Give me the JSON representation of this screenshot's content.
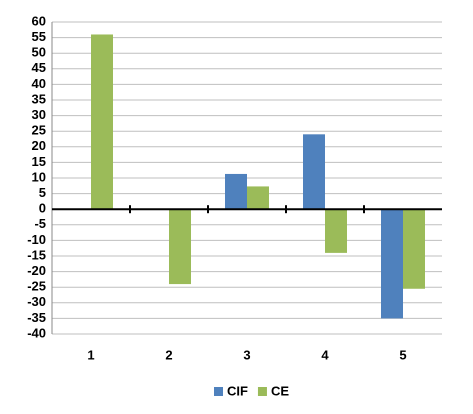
{
  "chart_data": {
    "type": "bar",
    "categories": [
      "1",
      "2",
      "3",
      "4",
      "5"
    ],
    "series": [
      {
        "name": "CIF",
        "color": "#4f81bd",
        "values": [
          0,
          0,
          11.3,
          24,
          -35
        ]
      },
      {
        "name": "CE",
        "color": "#9bbb59",
        "values": [
          56,
          -24,
          7.3,
          -14,
          -25.5
        ]
      }
    ],
    "ylim": [
      -40,
      60
    ],
    "yticks": [
      -40,
      -35,
      -30,
      -25,
      -20,
      -15,
      -10,
      -5,
      0,
      5,
      10,
      15,
      20,
      25,
      30,
      35,
      40,
      45,
      50,
      55,
      60
    ],
    "grid": true,
    "legend": "bottom"
  }
}
